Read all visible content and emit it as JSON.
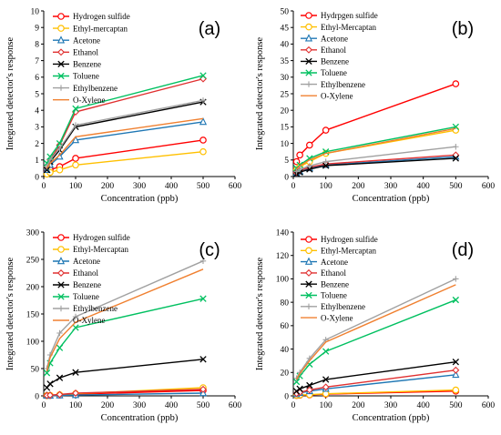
{
  "chart_data": [
    {
      "type": "line",
      "panel_label": "(a)",
      "xlabel": "Concentration (ppb)",
      "ylabel": "Integrated detector's response",
      "xlim": [
        0,
        600
      ],
      "ylim": [
        0,
        10
      ],
      "xticks": [
        0,
        100,
        200,
        300,
        400,
        500,
        600
      ],
      "yticks": [
        0,
        1,
        2,
        3,
        4,
        5,
        6,
        7,
        8,
        9,
        10
      ],
      "grid": false,
      "legend": "top-left",
      "x": [
        10,
        20,
        50,
        100,
        500
      ],
      "series": [
        {
          "name": "Hydrogen sulfide",
          "color": "#ff0000",
          "marker": "circle",
          "values": [
            0.25,
            0.4,
            0.6,
            1.1,
            2.2
          ]
        },
        {
          "name": "Ethyl-mercaptan",
          "color": "#ffc000",
          "marker": "circle",
          "values": [
            0.15,
            0.25,
            0.4,
            0.7,
            1.5
          ]
        },
        {
          "name": "Acetone",
          "color": "#1f77b4",
          "marker": "triangle",
          "values": [
            0.4,
            0.7,
            1.2,
            2.2,
            3.3
          ]
        },
        {
          "name": "Ethanol",
          "color": "#e03030",
          "marker": "diamond",
          "values": [
            0.6,
            1.0,
            1.9,
            3.9,
            5.9
          ]
        },
        {
          "name": "Benzene",
          "color": "#000000",
          "marker": "x",
          "values": [
            0.4,
            0.9,
            1.6,
            3.0,
            4.5
          ]
        },
        {
          "name": "Toluene",
          "color": "#00c060",
          "marker": "x",
          "values": [
            0.8,
            1.2,
            2.0,
            4.1,
            6.1
          ]
        },
        {
          "name": "Ethylbenzene",
          "color": "#a0a0a0",
          "marker": "plus",
          "values": [
            0.6,
            1.0,
            1.7,
            3.1,
            4.6
          ]
        },
        {
          "name": "O-Xylene",
          "color": "#f08030",
          "marker": "none",
          "values": [
            0.5,
            0.8,
            1.3,
            2.4,
            3.5
          ]
        }
      ]
    },
    {
      "type": "line",
      "panel_label": "(b)",
      "xlabel": "Concentration (ppb)",
      "ylabel": "Integrated detector's response",
      "xlim": [
        0,
        600
      ],
      "ylim": [
        0,
        50
      ],
      "xticks": [
        0,
        100,
        200,
        300,
        400,
        500,
        600
      ],
      "yticks": [
        0,
        5,
        10,
        15,
        20,
        25,
        30,
        35,
        40,
        45,
        50
      ],
      "grid": false,
      "legend": "top-left",
      "x": [
        10,
        20,
        50,
        100,
        500
      ],
      "series": [
        {
          "name": "Hydrpgen sulfide",
          "color": "#ff0000",
          "marker": "circle",
          "values": [
            4.5,
            6.5,
            9.5,
            14,
            28
          ]
        },
        {
          "name": "Ethyl-Mercaptan",
          "color": "#ffc000",
          "marker": "circle",
          "values": [
            2.0,
            3.0,
            4.5,
            7.0,
            14
          ]
        },
        {
          "name": "Acetone",
          "color": "#1f77b4",
          "marker": "triangle",
          "values": [
            1.0,
            1.5,
            2.5,
            3.5,
            6.0
          ]
        },
        {
          "name": "Ethanol",
          "color": "#e03030",
          "marker": "diamond",
          "values": [
            1.2,
            1.8,
            2.8,
            3.8,
            6.5
          ]
        },
        {
          "name": "Benzene",
          "color": "#000000",
          "marker": "x",
          "values": [
            0.8,
            1.3,
            2.2,
            3.3,
            5.5
          ]
        },
        {
          "name": "Toluene",
          "color": "#00c060",
          "marker": "x",
          "values": [
            2.5,
            3.5,
            5.5,
            7.5,
            15
          ]
        },
        {
          "name": "Ethylbenzene",
          "color": "#a0a0a0",
          "marker": "plus",
          "values": [
            1.5,
            2.2,
            3.2,
            4.5,
            9
          ]
        },
        {
          "name": "O-Xylene",
          "color": "#f08030",
          "marker": "none",
          "values": [
            2.2,
            3.2,
            5.0,
            7.0,
            14.5
          ]
        }
      ]
    },
    {
      "type": "line",
      "panel_label": "(c)",
      "xlabel": "Concentration (ppb)",
      "ylabel": "Integrated detector's response",
      "xlim": [
        0,
        600
      ],
      "ylim": [
        0,
        300
      ],
      "xticks": [
        0,
        100,
        200,
        300,
        400,
        500,
        600
      ],
      "yticks": [
        0,
        50,
        100,
        150,
        200,
        250,
        300
      ],
      "grid": false,
      "legend": "top-left",
      "x": [
        10,
        20,
        50,
        100,
        500
      ],
      "series": [
        {
          "name": "Hydrogen sulfide",
          "color": "#ff0000",
          "marker": "circle",
          "values": [
            0.5,
            0.8,
            1.5,
            3.0,
            10
          ]
        },
        {
          "name": "Ethyl-Mercaptan",
          "color": "#ffc000",
          "marker": "circle",
          "values": [
            0.5,
            1.0,
            2.0,
            4.0,
            15
          ]
        },
        {
          "name": "Acetone",
          "color": "#1f77b4",
          "marker": "triangle",
          "values": [
            0.2,
            0.4,
            0.8,
            1.5,
            5
          ]
        },
        {
          "name": "Ethanol",
          "color": "#e03030",
          "marker": "diamond",
          "values": [
            0.8,
            1.3,
            2.5,
            5.0,
            12
          ]
        },
        {
          "name": "Benzene",
          "color": "#000000",
          "marker": "x",
          "values": [
            15,
            22,
            33,
            43,
            67
          ]
        },
        {
          "name": "Toluene",
          "color": "#00c060",
          "marker": "x",
          "values": [
            42,
            60,
            88,
            125,
            178
          ]
        },
        {
          "name": "Ethylbenzene",
          "color": "#a0a0a0",
          "marker": "plus",
          "values": [
            50,
            75,
            115,
            145,
            247
          ]
        },
        {
          "name": "O-Xylene",
          "color": "#f08030",
          "marker": "none",
          "values": [
            45,
            70,
            105,
            135,
            232
          ]
        }
      ]
    },
    {
      "type": "line",
      "panel_label": "(d)",
      "xlabel": "Concentration (ppb)",
      "ylabel": "Integrated detector's response",
      "xlim": [
        0,
        600
      ],
      "ylim": [
        0,
        140
      ],
      "xticks": [
        0,
        100,
        200,
        300,
        400,
        500,
        600
      ],
      "yticks": [
        0,
        20,
        40,
        60,
        80,
        100,
        120,
        140
      ],
      "grid": false,
      "legend": "top-left",
      "x": [
        10,
        20,
        50,
        100,
        500
      ],
      "series": [
        {
          "name": "Hydrogen sulfide",
          "color": "#ff0000",
          "marker": "circle",
          "values": [
            0.3,
            0.5,
            0.8,
            1.5,
            4
          ]
        },
        {
          "name": "Ethyl-Mercaptan",
          "color": "#ffc000",
          "marker": "circle",
          "values": [
            0.4,
            0.7,
            1.0,
            1.8,
            5
          ]
        },
        {
          "name": "Acetone",
          "color": "#1f77b4",
          "marker": "triangle",
          "values": [
            1.5,
            2.5,
            4.0,
            6.0,
            18
          ]
        },
        {
          "name": "Ethanol",
          "color": "#e03030",
          "marker": "diamond",
          "values": [
            2.0,
            3.0,
            5.0,
            7.5,
            22
          ]
        },
        {
          "name": "Benzene",
          "color": "#000000",
          "marker": "x",
          "values": [
            4.0,
            6.0,
            9.0,
            14,
            29
          ]
        },
        {
          "name": "Toluene",
          "color": "#00c060",
          "marker": "x",
          "values": [
            12,
            17,
            27,
            38,
            82
          ]
        },
        {
          "name": "Ethylbenzene",
          "color": "#a0a0a0",
          "marker": "plus",
          "values": [
            15,
            20,
            32,
            48,
            100
          ]
        },
        {
          "name": "O-Xylene",
          "color": "#f08030",
          "marker": "none",
          "values": [
            14,
            19,
            30,
            46,
            95
          ]
        }
      ]
    }
  ]
}
